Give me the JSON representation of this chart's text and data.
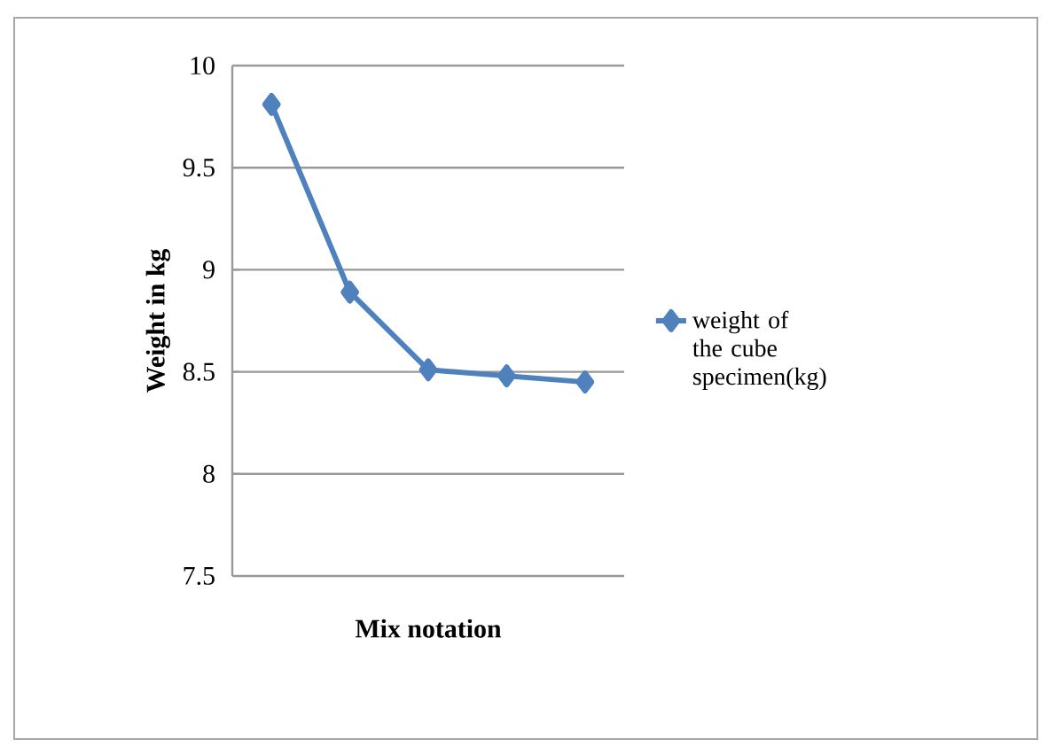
{
  "chart_data": {
    "type": "line",
    "xlabel": "Mix notation",
    "ylabel": "Weight in kg",
    "categories": [
      null,
      null,
      null,
      null,
      null
    ],
    "series": [
      {
        "name": "weight of the cube specimen(kg)",
        "color": "#4f81bd",
        "values": [
          9.81,
          8.89,
          8.51,
          8.48,
          8.45
        ]
      }
    ],
    "ylim": [
      7.5,
      10
    ],
    "yticks": [
      7.5,
      8,
      8.5,
      9,
      9.5,
      10
    ],
    "grid": "y",
    "legend": "right",
    "marker": "diamond"
  }
}
